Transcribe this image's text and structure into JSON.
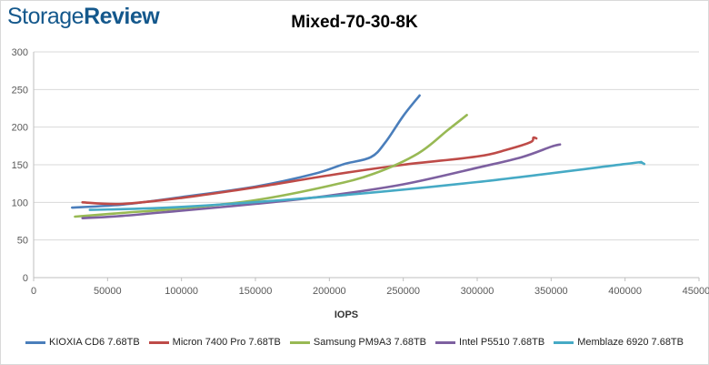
{
  "logo": {
    "storage": "Storage",
    "review": "Review"
  },
  "chart_data": {
    "type": "line",
    "title": "Mixed-70-30-8K",
    "xlabel": "IOPS",
    "ylabel": "",
    "xlim": [
      0,
      450000
    ],
    "ylim": [
      0,
      300
    ],
    "xticks": [
      0,
      50000,
      100000,
      150000,
      200000,
      250000,
      300000,
      350000,
      400000,
      450000
    ],
    "yticks": [
      0,
      50,
      100,
      150,
      200,
      250,
      300
    ],
    "grid": {
      "x": false,
      "y": true
    },
    "legend": "bottom",
    "series": [
      {
        "name": "KIOXIA CD6 7.68TB",
        "color": "#4a7ebb",
        "points": [
          [
            26000,
            93
          ],
          [
            60000,
            97
          ],
          [
            100000,
            107
          ],
          [
            150000,
            121
          ],
          [
            190000,
            138
          ],
          [
            210000,
            151
          ],
          [
            228000,
            160
          ],
          [
            238000,
            180
          ],
          [
            250000,
            215
          ],
          [
            261000,
            242
          ]
        ]
      },
      {
        "name": "Micron 7400 Pro 7.68TB",
        "color": "#be4b48",
        "points": [
          [
            33000,
            100
          ],
          [
            60000,
            98
          ],
          [
            100000,
            106
          ],
          [
            150000,
            120
          ],
          [
            200000,
            136
          ],
          [
            250000,
            150
          ],
          [
            300000,
            161
          ],
          [
            320000,
            170
          ],
          [
            336000,
            180
          ],
          [
            338000,
            186
          ],
          [
            340000,
            185
          ]
        ]
      },
      {
        "name": "Samsung PM9A3 7.68TB",
        "color": "#98b954",
        "points": [
          [
            28000,
            81
          ],
          [
            60000,
            86
          ],
          [
            100000,
            92
          ],
          [
            150000,
            103
          ],
          [
            200000,
            122
          ],
          [
            230000,
            138
          ],
          [
            260000,
            165
          ],
          [
            280000,
            196
          ],
          [
            293000,
            216
          ]
        ]
      },
      {
        "name": "Intel P5510 7.68TB",
        "color": "#7d60a0",
        "points": [
          [
            33000,
            79
          ],
          [
            60000,
            82
          ],
          [
            100000,
            89
          ],
          [
            150000,
            98
          ],
          [
            200000,
            109
          ],
          [
            250000,
            124
          ],
          [
            300000,
            146
          ],
          [
            330000,
            160
          ],
          [
            350000,
            174
          ],
          [
            356000,
            177
          ]
        ]
      },
      {
        "name": "Memblaze 6920 7.68TB",
        "color": "#46aac5",
        "points": [
          [
            38000,
            90
          ],
          [
            100000,
            94
          ],
          [
            200000,
            108
          ],
          [
            300000,
            127
          ],
          [
            400000,
            151
          ],
          [
            410000,
            153
          ],
          [
            413000,
            151
          ]
        ]
      }
    ]
  }
}
